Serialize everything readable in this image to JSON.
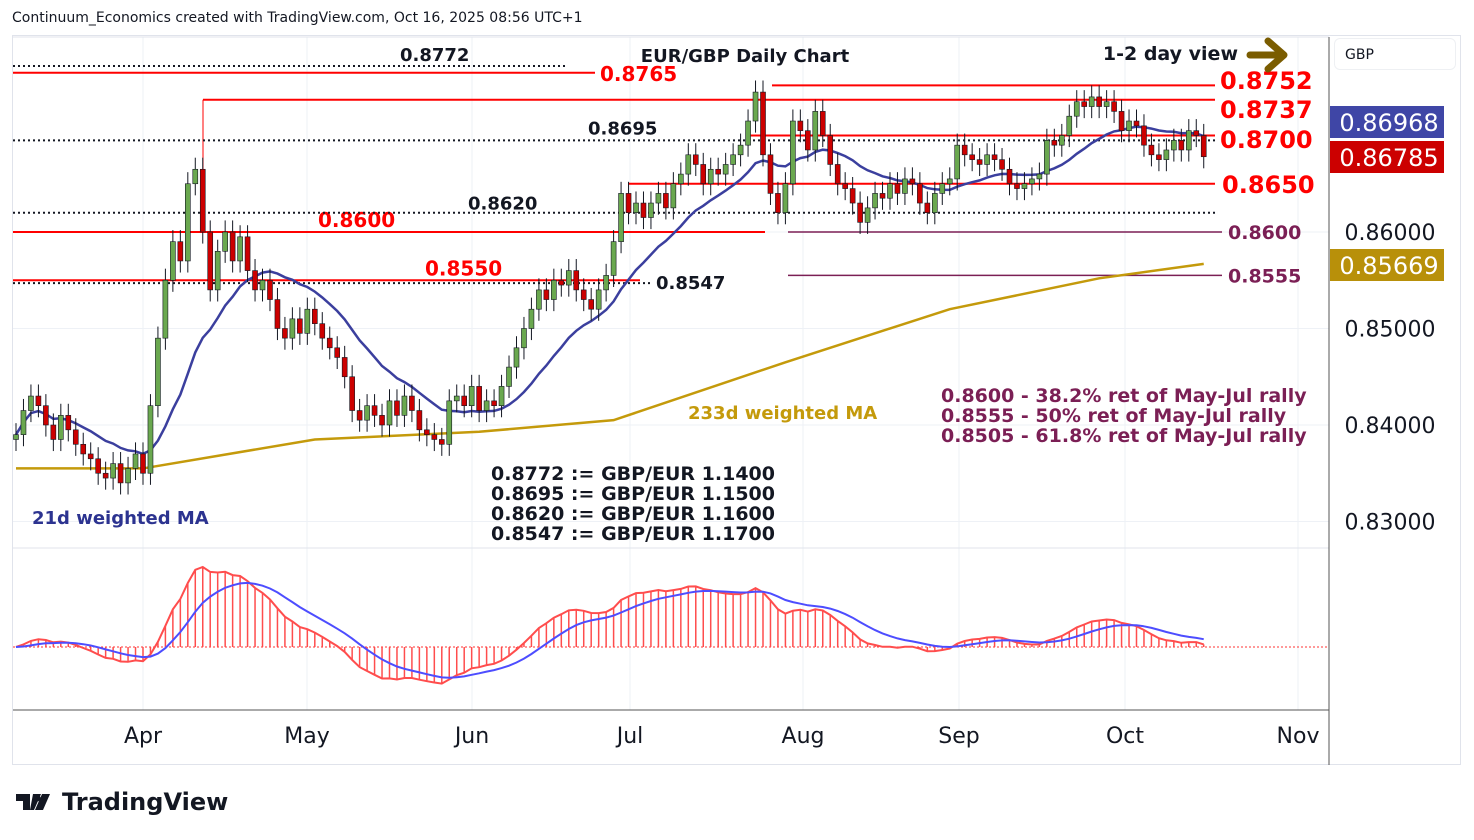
{
  "header": {
    "text": "Continuum_Economics created with TradingView.com, Oct 16, 2025 08:56 UTC+1"
  },
  "currency": "GBP",
  "brand": "TradingView",
  "chart_data": {
    "type": "candlestick",
    "title": "EUR/GBP Daily Chart",
    "view_label": "1-2 day view",
    "x_ticks": [
      "Apr",
      "May",
      "Jun",
      "Jul",
      "Aug",
      "Sep",
      "Oct",
      "Nov"
    ],
    "y_ticks": [
      "0.86000",
      "0.85000",
      "0.84000",
      "0.83000"
    ],
    "ylim": [
      0.8265,
      0.8795
    ],
    "closes": [
      0.839,
      0.8415,
      0.843,
      0.842,
      0.84,
      0.8385,
      0.841,
      0.8395,
      0.838,
      0.837,
      0.8365,
      0.835,
      0.8345,
      0.836,
      0.834,
      0.8355,
      0.837,
      0.835,
      0.842,
      0.849,
      0.855,
      0.859,
      0.857,
      0.865,
      0.8665,
      0.86,
      0.854,
      0.858,
      0.86,
      0.857,
      0.8595,
      0.856,
      0.854,
      0.855,
      0.853,
      0.85,
      0.849,
      0.851,
      0.8495,
      0.852,
      0.8505,
      0.849,
      0.848,
      0.847,
      0.845,
      0.8415,
      0.8405,
      0.842,
      0.841,
      0.84,
      0.8425,
      0.841,
      0.843,
      0.8415,
      0.8395,
      0.839,
      0.8385,
      0.838,
      0.8425,
      0.843,
      0.842,
      0.844,
      0.8415,
      0.8425,
      0.842,
      0.844,
      0.846,
      0.848,
      0.85,
      0.852,
      0.854,
      0.853,
      0.855,
      0.8545,
      0.856,
      0.854,
      0.853,
      0.852,
      0.854,
      0.8555,
      0.859,
      0.864,
      0.862,
      0.863,
      0.8615,
      0.863,
      0.864,
      0.8625,
      0.865,
      0.866,
      0.868,
      0.867,
      0.865,
      0.8665,
      0.866,
      0.867,
      0.868,
      0.869,
      0.8715,
      0.8745,
      0.868,
      0.864,
      0.862,
      0.865,
      0.8715,
      0.8705,
      0.8685,
      0.8725,
      0.87,
      0.867,
      0.865,
      0.8645,
      0.863,
      0.861,
      0.8625,
      0.864,
      0.8635,
      0.865,
      0.864,
      0.8655,
      0.865,
      0.863,
      0.862,
      0.864,
      0.865,
      0.8655,
      0.869,
      0.868,
      0.8675,
      0.867,
      0.868,
      0.8675,
      0.8665,
      0.865,
      0.8645,
      0.865,
      0.8655,
      0.866,
      0.8695,
      0.869,
      0.87,
      0.872,
      0.8735,
      0.873,
      0.874,
      0.873,
      0.8735,
      0.8725,
      0.8705,
      0.8715,
      0.871,
      0.869,
      0.868,
      0.8675,
      0.8685,
      0.8695,
      0.8685,
      0.8705,
      0.87,
      0.8678
    ],
    "ma233": {
      "label": "233d weighted MA",
      "color": "#c49a0b",
      "points": [
        [
          0,
          0.8355
        ],
        [
          17,
          0.8355
        ],
        [
          40,
          0.8385
        ],
        [
          62,
          0.8393
        ],
        [
          80,
          0.8405
        ],
        [
          103,
          0.8465
        ],
        [
          125,
          0.852
        ],
        [
          145,
          0.8552
        ],
        [
          159,
          0.8567
        ]
      ]
    },
    "ma21": {
      "label": "21d weighted MA",
      "color": "#3b3f9e"
    },
    "levels_red": [
      {
        "value": 0.8765,
        "label": "0.8765"
      },
      {
        "value": 0.8752,
        "label": "0.8752"
      },
      {
        "value": 0.8737,
        "label": "0.8737"
      },
      {
        "value": 0.87,
        "label": "0.8700"
      },
      {
        "value": 0.865,
        "label": "0.8650"
      },
      {
        "value": 0.86,
        "label": "0.8600"
      },
      {
        "value": 0.855,
        "label": "0.8550"
      }
    ],
    "levels_dotted": [
      {
        "value": 0.8772,
        "label": "0.8772"
      },
      {
        "value": 0.8695,
        "label": "0.8695"
      },
      {
        "value": 0.862,
        "label": "0.8620"
      },
      {
        "value": 0.8547,
        "label": "0.8547"
      }
    ],
    "levels_purple": [
      {
        "value": 0.86,
        "label": "0.8600"
      },
      {
        "value": 0.8555,
        "label": "0.8555"
      }
    ],
    "price_tags": [
      {
        "label": "0.86968",
        "color": "#3f46a6"
      },
      {
        "label": "0.86785",
        "color": "#cc0000"
      },
      {
        "label": "0.85669",
        "color": "#b8900a"
      }
    ],
    "fib_notes": [
      "0.8600 - 38.2% ret of May-Jul rally",
      "0.8555 - 50% ret of May-Jul rally",
      "0.8505 - 61.8% ret of May-Jul rally"
    ],
    "conversions": [
      "0.8772 := GBP/EUR 1.1400",
      "0.8695 := GBP/EUR 1.1500",
      "0.8620 := GBP/EUR 1.1600",
      "0.8547 := GBP/EUR 1.1700"
    ],
    "colors": {
      "up": "#6aa84f",
      "down": "#cc0000",
      "red_level": "#ff0000",
      "purple": "#7b1f55",
      "arrow": "#7a5c00"
    }
  }
}
